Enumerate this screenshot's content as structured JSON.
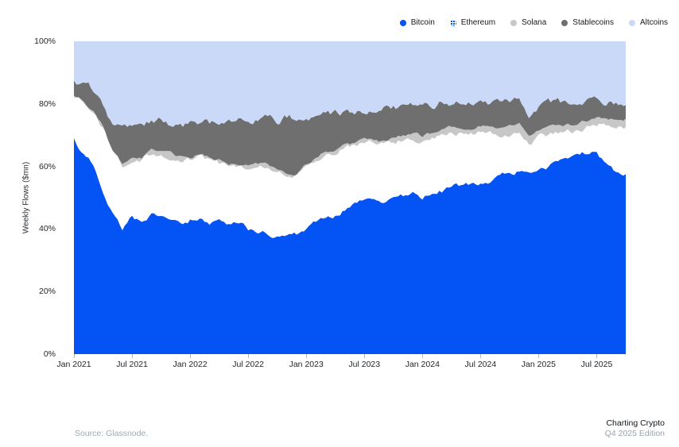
{
  "colors": {
    "bitcoin": "#0453f4",
    "ethereum_pattern_dot": "#0453f4",
    "ethereum_pattern_bg": "#ffffff",
    "solana": "#c7c7c7",
    "stablecoins": "#6f6f6f",
    "altcoins": "#cbd9f8",
    "axis_text": "#1e2328",
    "muted_text": "#a0a9af",
    "tick_mark": "#aeb6bc"
  },
  "legend": {
    "items": [
      {
        "label": "Bitcoin",
        "swatch": "bitcoin"
      },
      {
        "label": "Ethereum",
        "swatch": "ethereum"
      },
      {
        "label": "Solana",
        "swatch": "solana"
      },
      {
        "label": "Stablecoins",
        "swatch": "stablecoins"
      },
      {
        "label": "Altcoins",
        "swatch": "altcoins"
      }
    ]
  },
  "y_axis": {
    "title": "Weekly Flows ($mn)",
    "min": 0,
    "max": 100,
    "ticks": [
      {
        "value": 0,
        "label": "0%"
      },
      {
        "value": 20,
        "label": "20%"
      },
      {
        "value": 40,
        "label": "40%"
      },
      {
        "value": 60,
        "label": "60%"
      },
      {
        "value": 80,
        "label": "80%"
      },
      {
        "value": 100,
        "label": "100%"
      }
    ]
  },
  "x_axis": {
    "ticks": [
      {
        "month_index": 0,
        "label": "Jan 2021"
      },
      {
        "month_index": 6,
        "label": "Jul 2021"
      },
      {
        "month_index": 12,
        "label": "Jan 2022"
      },
      {
        "month_index": 18,
        "label": "Jul 2022"
      },
      {
        "month_index": 24,
        "label": "Jan 2023"
      },
      {
        "month_index": 30,
        "label": "Jul 2023"
      },
      {
        "month_index": 36,
        "label": "Jan 2024"
      },
      {
        "month_index": 42,
        "label": "Jul 2024"
      },
      {
        "month_index": 48,
        "label": "Jan 2025"
      },
      {
        "month_index": 54,
        "label": "Jul 2025"
      }
    ]
  },
  "footer": {
    "source": "Source: Glassnode.",
    "brand_line1": "Charting Crypto",
    "brand_line2": "Q4 2025 Edition"
  },
  "chart_data": {
    "type": "area",
    "stacking": "percent",
    "unit": "%",
    "x_start": "2021-01",
    "x_end": "2025-10",
    "x_step": "month",
    "ylim": [
      0,
      100
    ],
    "grid": false,
    "legend_position": "top-right",
    "series": [
      {
        "name": "Bitcoin",
        "values": [
          69,
          64,
          61,
          52,
          45,
          40,
          44,
          42,
          44,
          45,
          43,
          42,
          43,
          44,
          42,
          42,
          41,
          42,
          40,
          39,
          38.5,
          38,
          39,
          38.5,
          40,
          42,
          44,
          44.5,
          46,
          47.5,
          49,
          49.5,
          49,
          50,
          50.5,
          51,
          50,
          51,
          52,
          54,
          54,
          54.5,
          55,
          55.5,
          56.5,
          58,
          58.5,
          57,
          59,
          60,
          61.5,
          62.5,
          63.5,
          64.5,
          64.5,
          61,
          58,
          57.5
        ]
      },
      {
        "name": "Ethereum",
        "values": [
          13,
          16,
          16,
          20,
          19,
          20,
          18,
          20,
          20,
          19,
          20,
          20,
          19,
          19,
          20,
          19,
          19,
          18,
          19.5,
          21,
          21.5,
          20,
          18,
          18,
          20,
          20,
          20,
          20,
          20,
          19,
          18.5,
          18,
          18,
          18,
          18,
          18,
          18,
          18,
          18,
          16.5,
          16.5,
          16,
          16,
          15,
          13.5,
          12.5,
          12.5,
          10,
          10.5,
          10,
          9,
          8.5,
          8,
          8,
          9,
          12,
          14.5,
          15
        ]
      },
      {
        "name": "Solana",
        "values": [
          0.6,
          0.6,
          0.7,
          0.8,
          0.8,
          0.8,
          0.7,
          0.8,
          1,
          1,
          1.2,
          1,
          1,
          1,
          1,
          1,
          0.8,
          0.8,
          0.8,
          0.8,
          0.8,
          0.8,
          0.6,
          0.5,
          0.6,
          0.7,
          0.8,
          0.8,
          0.9,
          1,
          1,
          1,
          1,
          1.2,
          1.5,
          1.8,
          1.8,
          1.8,
          2,
          2,
          2,
          2,
          2,
          2,
          2.2,
          2.5,
          3,
          3,
          2.5,
          2.5,
          2.2,
          2.2,
          2.2,
          2.2,
          2.2,
          2.5,
          2.8,
          2.8
        ]
      },
      {
        "name": "Stablecoins",
        "values": [
          4.9,
          5.4,
          6.8,
          7.2,
          9.2,
          11.2,
          10.3,
          9.7,
          9,
          9.5,
          9.3,
          10,
          10.5,
          10.5,
          11,
          12,
          13.7,
          14.2,
          14.2,
          14.2,
          14.7,
          15.7,
          18.4,
          18.5,
          15.4,
          13.8,
          12.7,
          11.7,
          10.6,
          10,
          9.5,
          10,
          10.5,
          9.8,
          9,
          8.7,
          9.2,
          8.7,
          8.5,
          8,
          8.5,
          8,
          8,
          8,
          8.8,
          8,
          8,
          6,
          7,
          7.5,
          7.8,
          7.3,
          7.3,
          6.3,
          5.8,
          5,
          4.7,
          4.2
        ]
      },
      {
        "name": "Altcoins",
        "values": [
          12.5,
          14,
          15.5,
          20,
          26,
          28,
          27,
          27.5,
          26,
          25.5,
          26.5,
          27,
          26.5,
          25.5,
          26,
          26,
          25.5,
          25,
          25.5,
          25,
          24.5,
          25.5,
          24,
          24.5,
          24,
          23.5,
          22.5,
          23,
          22.5,
          22.5,
          22,
          21.5,
          21.5,
          21,
          21,
          20.5,
          21,
          20.5,
          19.5,
          19.5,
          19,
          19.5,
          19,
          19.5,
          19,
          19,
          18,
          24,
          21,
          20,
          19.5,
          19.5,
          19,
          19,
          18.5,
          19.5,
          20,
          20.5
        ]
      }
    ],
    "render": {
      "upsample_per_month": 4,
      "jitter": [
        1.1,
        1.1,
        0.7,
        1.6,
        0
      ],
      "seed": 7
    }
  }
}
